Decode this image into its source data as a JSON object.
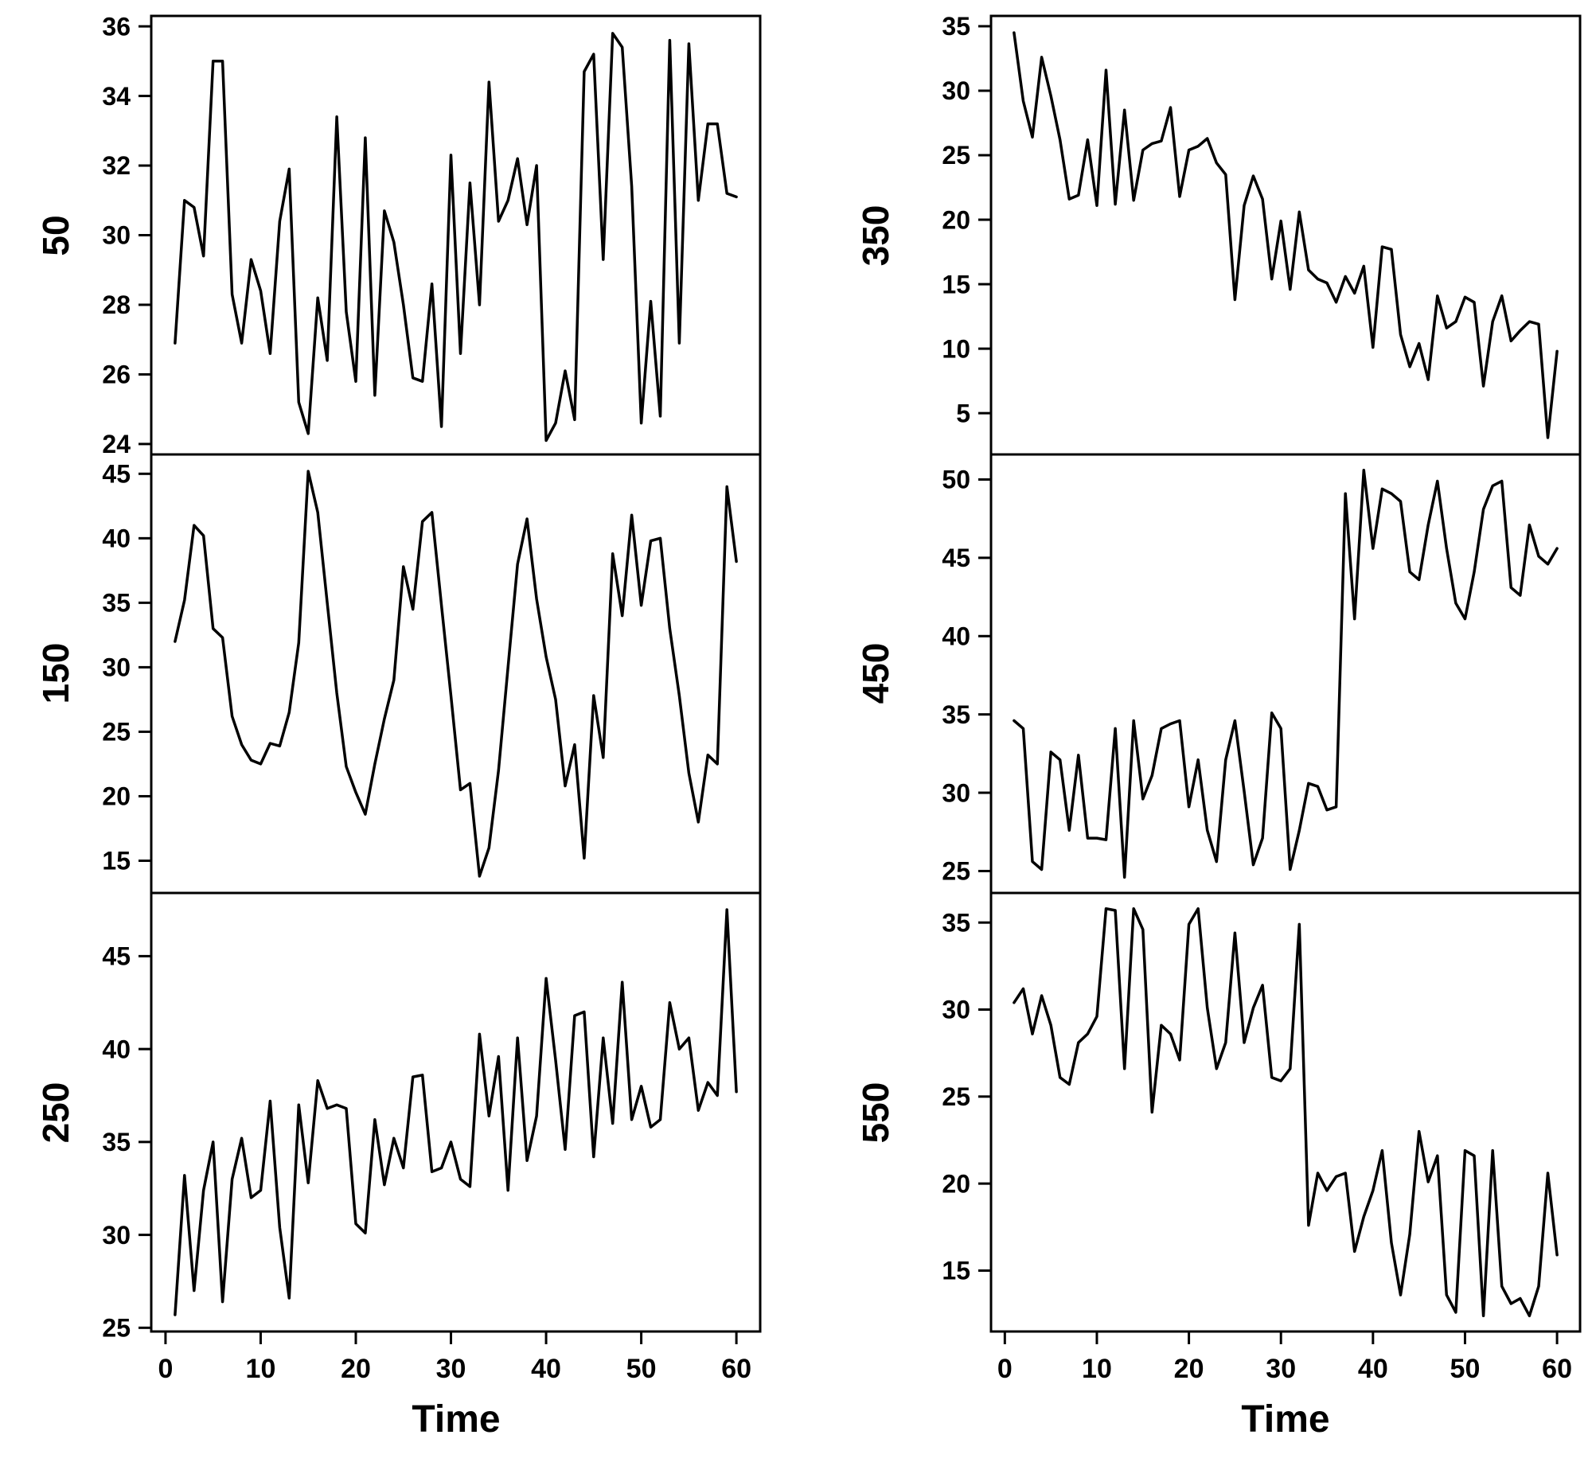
{
  "figure": {
    "background": "#ffffff",
    "line_color": "#000000",
    "text_color": "#000000"
  },
  "chart_data": {
    "type": "line",
    "style": "multi-panel stacked time series (R plot.ts style), 2 columns x 3 rows, black lines on white, no grid",
    "grid": false,
    "legend": "none",
    "x": {
      "label": "Time",
      "lim": [
        -1.5,
        62.5
      ],
      "ticks": [
        0,
        10,
        20,
        30,
        40,
        50,
        60
      ],
      "t_start": 1,
      "t_end": 60
    },
    "panels": [
      {
        "label": "50",
        "position": "left-top",
        "ylim": [
          23.7,
          36.3
        ],
        "yticks": [
          24,
          26,
          28,
          30,
          32,
          34,
          36
        ],
        "values": [
          26.9,
          31.0,
          30.8,
          29.4,
          35.0,
          35.0,
          28.3,
          26.9,
          29.3,
          28.4,
          26.6,
          30.4,
          31.9,
          25.2,
          24.3,
          28.2,
          26.4,
          33.4,
          27.8,
          25.8,
          32.8,
          25.4,
          30.7,
          29.8,
          28.0,
          25.9,
          25.8,
          28.6,
          24.5,
          32.3,
          26.6,
          31.5,
          28.0,
          34.4,
          30.4,
          31.0,
          32.2,
          30.3,
          32.0,
          24.1,
          24.6,
          26.1,
          24.7,
          34.7,
          35.2,
          29.3,
          35.8,
          35.4,
          31.4,
          24.6,
          28.1,
          24.8,
          35.6,
          26.9,
          35.5,
          31.0,
          33.2,
          33.2,
          31.2,
          31.1
        ]
      },
      {
        "label": "150",
        "position": "left-middle",
        "ylim": [
          12.5,
          46.5
        ],
        "yticks": [
          15,
          20,
          25,
          30,
          35,
          40,
          45
        ],
        "values": [
          32.0,
          35.2,
          41.0,
          40.2,
          33.0,
          32.3,
          26.2,
          24.0,
          22.8,
          22.5,
          24.1,
          23.9,
          26.5,
          31.9,
          45.2,
          42.0,
          35.0,
          28.0,
          22.3,
          20.3,
          18.6,
          22.5,
          26.0,
          29.0,
          37.8,
          34.5,
          41.3,
          42.0,
          34.8,
          27.8,
          20.5,
          21.0,
          13.8,
          16.0,
          22.0,
          30.0,
          38.0,
          41.5,
          35.3,
          30.8,
          27.5,
          20.8,
          24.0,
          15.2,
          27.8,
          23.0,
          38.8,
          34.0,
          41.8,
          34.8,
          39.8,
          40.0,
          33.0,
          27.8,
          21.8,
          18.0,
          23.2,
          22.5,
          44.0,
          38.2
        ]
      },
      {
        "label": "250",
        "position": "left-bottom",
        "ylim": [
          24.8,
          48.4
        ],
        "yticks": [
          25,
          30,
          35,
          40,
          45
        ],
        "values": [
          25.7,
          33.2,
          27.0,
          32.4,
          35.0,
          26.4,
          33.0,
          35.2,
          32.0,
          32.4,
          37.2,
          30.4,
          26.6,
          37.0,
          32.8,
          38.3,
          36.8,
          37.0,
          36.8,
          30.6,
          30.1,
          36.2,
          32.7,
          35.2,
          33.6,
          38.5,
          38.6,
          33.4,
          33.6,
          35.0,
          33.0,
          32.6,
          40.8,
          36.4,
          39.6,
          32.4,
          40.6,
          34.0,
          36.4,
          43.8,
          39.4,
          34.6,
          41.8,
          42.0,
          34.2,
          40.6,
          36.0,
          43.6,
          36.2,
          38.0,
          35.8,
          36.2,
          42.5,
          40.0,
          40.6,
          36.7,
          38.2,
          37.5,
          47.5,
          37.7
        ]
      },
      {
        "label": "350",
        "position": "right-top",
        "ylim": [
          1.8,
          35.8
        ],
        "yticks": [
          5,
          10,
          15,
          20,
          25,
          30,
          35
        ],
        "values": [
          34.5,
          29.2,
          26.4,
          32.6,
          29.6,
          26.2,
          21.6,
          21.9,
          26.2,
          21.1,
          31.6,
          21.2,
          28.5,
          21.5,
          25.4,
          25.9,
          26.1,
          28.7,
          21.8,
          25.4,
          25.7,
          26.3,
          24.4,
          23.5,
          13.8,
          21.1,
          23.4,
          21.6,
          15.4,
          19.9,
          14.6,
          20.6,
          16.1,
          15.4,
          15.1,
          13.6,
          15.6,
          14.3,
          16.4,
          10.1,
          17.9,
          17.7,
          11.1,
          8.6,
          10.4,
          7.6,
          14.1,
          11.6,
          12.1,
          14.0,
          13.6,
          7.1,
          12.1,
          14.1,
          10.6,
          11.4,
          12.1,
          11.9,
          3.1,
          9.8
        ]
      },
      {
        "label": "450",
        "position": "right-middle",
        "ylim": [
          23.6,
          51.6
        ],
        "yticks": [
          25,
          30,
          35,
          40,
          45,
          50
        ],
        "values": [
          34.6,
          34.1,
          25.6,
          25.1,
          32.6,
          32.1,
          27.6,
          32.4,
          27.1,
          27.1,
          27.0,
          34.1,
          24.6,
          34.6,
          29.6,
          31.1,
          34.1,
          34.4,
          34.6,
          29.1,
          32.1,
          27.6,
          25.6,
          32.1,
          34.6,
          30.1,
          25.4,
          27.1,
          35.1,
          34.1,
          25.1,
          27.6,
          30.6,
          30.4,
          28.9,
          29.1,
          49.1,
          41.1,
          50.6,
          45.6,
          49.4,
          49.1,
          48.6,
          44.1,
          43.6,
          47.1,
          49.9,
          45.6,
          42.1,
          41.1,
          44.1,
          48.1,
          49.6,
          49.9,
          43.1,
          42.6,
          47.1,
          45.1,
          44.6,
          45.6
        ]
      },
      {
        "label": "550",
        "position": "right-bottom",
        "ylim": [
          11.5,
          36.7
        ],
        "yticks": [
          15,
          20,
          25,
          30,
          35
        ],
        "values": [
          30.4,
          31.2,
          28.6,
          30.8,
          29.1,
          26.1,
          25.7,
          28.1,
          28.6,
          29.6,
          35.8,
          35.7,
          26.6,
          35.8,
          34.6,
          24.1,
          29.1,
          28.6,
          27.1,
          34.9,
          35.8,
          30.1,
          26.6,
          28.1,
          34.4,
          28.1,
          30.1,
          31.4,
          26.1,
          25.9,
          26.6,
          34.9,
          17.6,
          20.6,
          19.6,
          20.4,
          20.6,
          16.1,
          18.1,
          19.6,
          21.9,
          16.6,
          13.6,
          17.1,
          23.0,
          20.1,
          21.6,
          13.6,
          12.6,
          21.9,
          21.6,
          12.4,
          21.9,
          14.1,
          13.1,
          13.4,
          12.4,
          14.1,
          20.6,
          15.9
        ]
      }
    ]
  }
}
